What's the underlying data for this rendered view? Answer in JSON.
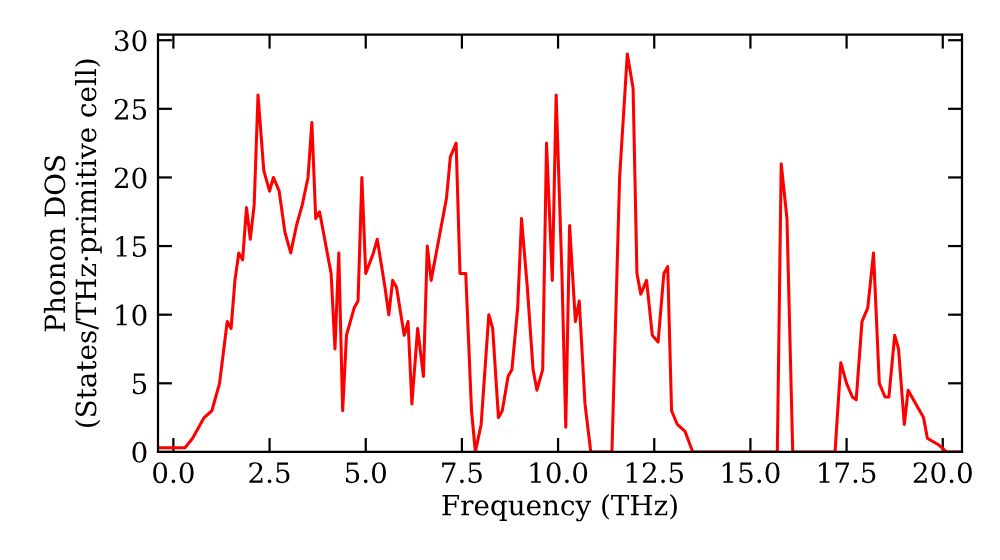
{
  "chart_data": {
    "type": "line",
    "xlabel": "Frequency (THz)",
    "ylabel": "Phonon DOS\n(States/THz·primitive cell)",
    "xlim": [
      -0.4,
      20.5
    ],
    "ylim": [
      0,
      30.4
    ],
    "xticks": [
      {
        "value": 0,
        "label": "0.0"
      },
      {
        "value": 2.5,
        "label": "2.5"
      },
      {
        "value": 5,
        "label": "5.0"
      },
      {
        "value": 7.5,
        "label": "7.5"
      },
      {
        "value": 10,
        "label": "10.0"
      },
      {
        "value": 12.5,
        "label": "12.5"
      },
      {
        "value": 15,
        "label": "15.0"
      },
      {
        "value": 17.5,
        "label": "17.5"
      },
      {
        "value": 20,
        "label": "20.0"
      }
    ],
    "yticks": [
      0,
      5,
      10,
      15,
      20,
      25,
      30
    ],
    "grid": false,
    "marker": "none",
    "line_style": "solid",
    "series": [
      {
        "color": "#ff0000",
        "x": [
          -0.4,
          0.3,
          0.5,
          0.8,
          1.0,
          1.2,
          1.4,
          1.5,
          1.6,
          1.7,
          1.8,
          1.9,
          2.0,
          2.1,
          2.2,
          2.35,
          2.5,
          2.6,
          2.75,
          2.9,
          3.05,
          3.2,
          3.35,
          3.5,
          3.6,
          3.7,
          3.8,
          3.9,
          4.1,
          4.2,
          4.3,
          4.4,
          4.5,
          4.7,
          4.8,
          4.9,
          5.0,
          5.2,
          5.3,
          5.5,
          5.6,
          5.7,
          5.8,
          6.0,
          6.1,
          6.2,
          6.35,
          6.5,
          6.6,
          6.7,
          6.9,
          7.1,
          7.2,
          7.35,
          7.45,
          7.6,
          7.75,
          7.85,
          8.0,
          8.2,
          8.3,
          8.45,
          8.55,
          8.7,
          8.8,
          8.95,
          9.05,
          9.2,
          9.35,
          9.45,
          9.6,
          9.7,
          9.85,
          9.95,
          10.1,
          10.2,
          10.3,
          10.45,
          10.55,
          10.7,
          10.85,
          11.4,
          11.6,
          11.8,
          11.95,
          12.05,
          12.15,
          12.3,
          12.45,
          12.6,
          12.75,
          12.85,
          12.95,
          13.1,
          13.3,
          13.5,
          15.7,
          15.8,
          15.95,
          16.1,
          17.2,
          17.35,
          17.5,
          17.65,
          17.75,
          17.9,
          18.05,
          18.2,
          18.35,
          18.5,
          18.6,
          18.75,
          18.85,
          19.0,
          19.1,
          19.3,
          19.5,
          19.6,
          19.9,
          20.1,
          20.5
        ],
        "values": [
          0.3,
          0.3,
          1,
          2.5,
          3,
          5,
          9.5,
          9,
          12.5,
          14.5,
          14,
          17.8,
          15.5,
          18,
          26,
          20.5,
          19,
          20,
          19,
          16,
          14.5,
          16.5,
          18,
          20,
          24,
          17,
          17.5,
          16,
          13,
          7.5,
          14.5,
          3,
          8.5,
          10.5,
          11,
          20,
          13,
          14.5,
          15.5,
          12,
          10,
          12.5,
          12,
          8.5,
          9.5,
          3.5,
          9,
          5.5,
          15,
          12.5,
          15.5,
          18.5,
          21.5,
          22.5,
          13,
          13,
          3,
          0,
          2,
          10,
          9,
          2.5,
          3,
          5.5,
          6,
          10.5,
          17,
          12,
          6,
          4.5,
          6,
          22.5,
          12.5,
          26,
          13,
          1.8,
          16.5,
          9.5,
          11,
          3.5,
          0,
          0,
          20,
          29,
          26.5,
          13,
          11.5,
          12.5,
          8.5,
          8,
          13,
          13.5,
          3,
          2,
          1.5,
          0,
          0,
          21,
          17,
          0,
          0,
          6.5,
          5,
          4,
          3.8,
          9.5,
          10.5,
          14.5,
          5,
          4,
          4,
          8.5,
          7.5,
          2,
          4.5,
          3.5,
          2.5,
          1,
          0.5,
          0,
          0
        ]
      }
    ]
  }
}
